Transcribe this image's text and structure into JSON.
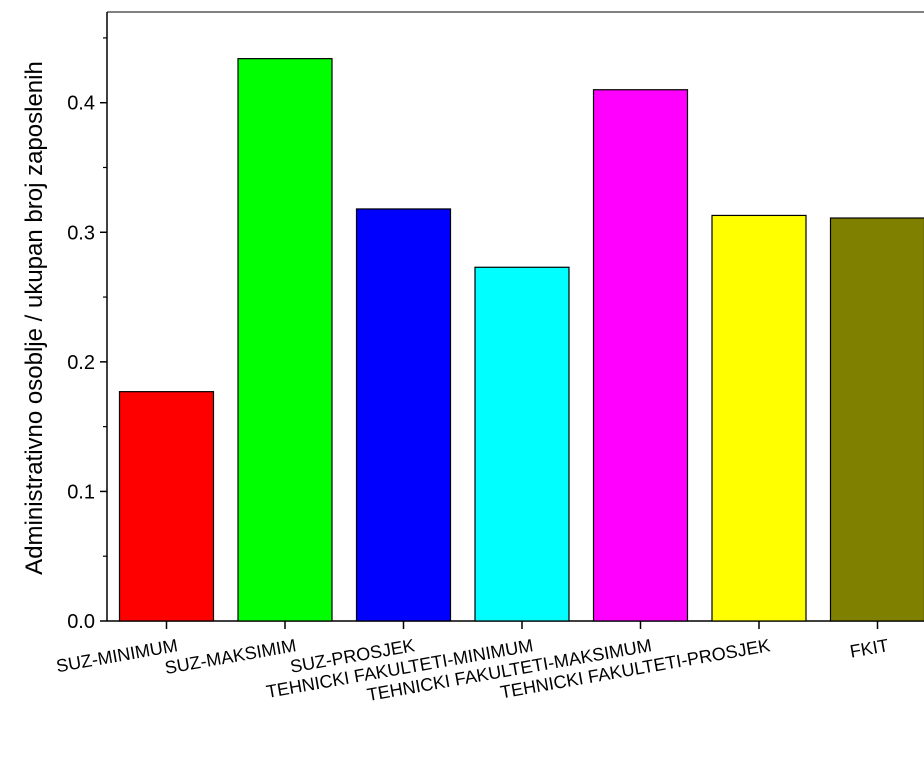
{
  "chart_data": {
    "type": "bar",
    "title": "",
    "xlabel": "",
    "ylabel": "Administrativno osoblje / ukupan broj zaposlenih",
    "ylim": [
      0,
      0.47
    ],
    "yticks": [
      0.0,
      0.1,
      0.2,
      0.3,
      0.4
    ],
    "ytick_labels": [
      "0.0",
      "0.1",
      "0.2",
      "0.3",
      "0.4"
    ],
    "grid": false,
    "legend": "none",
    "categories": [
      "SUZ-MINIMUM",
      "SUZ-MAKSIMIM",
      "SUZ-PROSJEK",
      "TEHNICKI FAKULTETI-MINIMUM",
      "TEHNICKI FAKULTETI-MAKSIMUM",
      "TEHNICKI FAKULTETI-PROSJEK",
      "FKIT"
    ],
    "values": [
      0.177,
      0.434,
      0.318,
      0.273,
      0.41,
      0.313,
      0.311
    ],
    "colors": [
      "#ff0000",
      "#00ff00",
      "#0000ff",
      "#00ffff",
      "#ff00ff",
      "#ffff00",
      "#808000"
    ]
  }
}
